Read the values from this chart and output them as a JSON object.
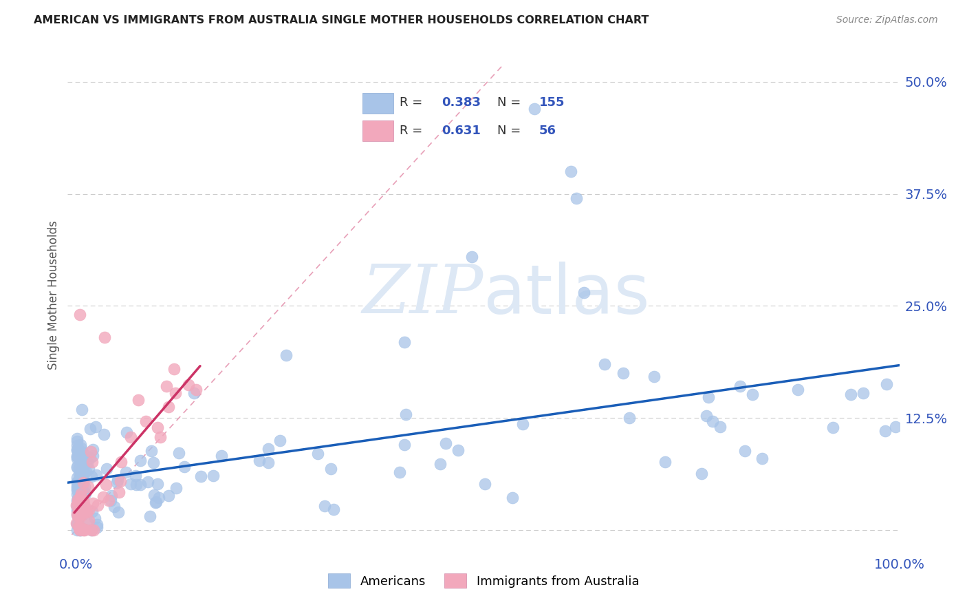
{
  "title": "AMERICAN VS IMMIGRANTS FROM AUSTRALIA SINGLE MOTHER HOUSEHOLDS CORRELATION CHART",
  "source": "Source: ZipAtlas.com",
  "ylabel": "Single Mother Households",
  "r_american": 0.383,
  "n_american": 155,
  "r_immigrant": 0.631,
  "n_immigrant": 56,
  "american_color": "#a8c4e8",
  "immigrant_color": "#f2a8bc",
  "trendline_american_color": "#1a5eb8",
  "trendline_immigrant_color": "#cc3366",
  "diagonal_color": "#e8a0b8",
  "background_color": "#ffffff",
  "grid_color": "#cccccc",
  "watermark_zip": "ZIP",
  "watermark_atlas": "atlas",
  "xlim": [
    -0.01,
    1.0
  ],
  "ylim": [
    -0.025,
    0.55
  ],
  "xticks": [
    0.0,
    0.25,
    0.5,
    0.75,
    1.0
  ],
  "yticks": [
    0.0,
    0.125,
    0.25,
    0.375,
    0.5
  ],
  "xticklabels": [
    "0.0%",
    "",
    "",
    "",
    "100.0%"
  ],
  "yticklabels": [
    "",
    "12.5%",
    "25.0%",
    "37.5%",
    "50.0%"
  ]
}
